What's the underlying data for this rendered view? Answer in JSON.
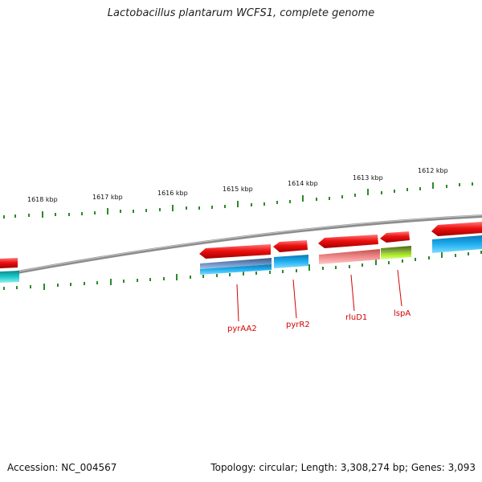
{
  "title": "Lactobacillus plantarum WCFS1, complete genome",
  "footer": {
    "accession": "Accession: NC_004567",
    "topology": "Topology: circular; Length: 3,308,274 bp; Genes: 3,093"
  },
  "scale_labels": [
    "1618 kbp",
    "1617 kbp",
    "1616 kbp",
    "1615 kbp",
    "1614 kbp",
    "1613 kbp",
    "1612 kbp"
  ],
  "gene_labels": [
    "pyrAA2",
    "pyrR2",
    "rluD1",
    "lspA"
  ],
  "colors": {
    "backbone": "#8a8a8a",
    "tick": "#2a8a2a",
    "cds": "#e8101a",
    "label": "#d40000",
    "cog_blue": "#1aa8e8",
    "cog_teal": "#1ab8b8",
    "cog_steel": "#5a7fb0",
    "cog_pink": "#f08080",
    "cog_olive": "#6a8a20",
    "cog_lime": "#a8e020"
  }
}
